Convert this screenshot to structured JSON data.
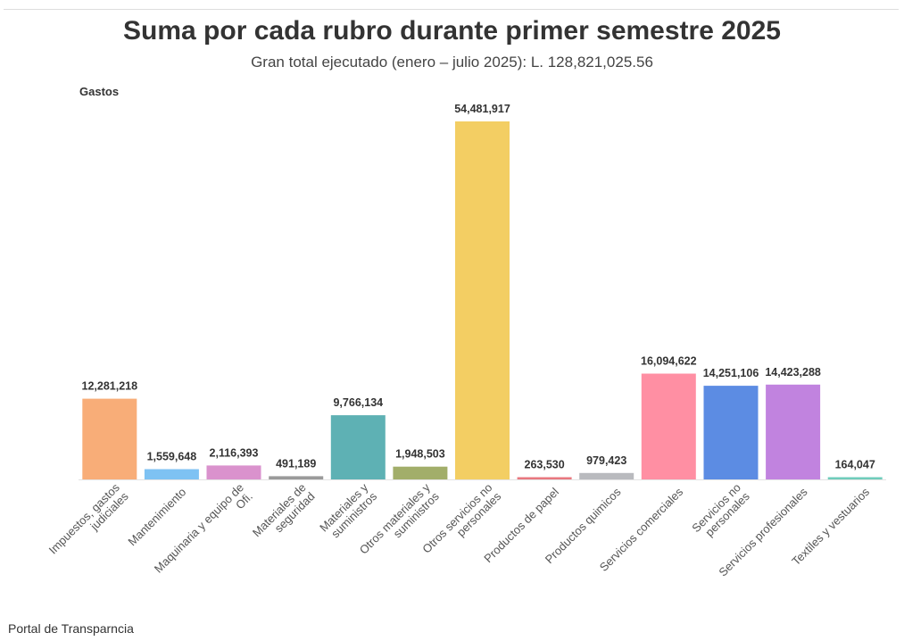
{
  "header": {
    "title": "Suma por cada rubro durante primer semestre 2025",
    "subtitle": "Gran total ejecutado (enero – julio 2025): L. 128,821,025.56"
  },
  "footer": {
    "source": "Portal de Transparncia"
  },
  "chart_data": {
    "type": "bar",
    "title": "Suma por cada rubro durante primer semestre 2025",
    "subtitle": "Gran total ejecutado (enero – julio 2025): L. 128,821,025.56",
    "xlabel": "",
    "ylabel": "Gastos",
    "grid": false,
    "legend": "none",
    "ylim": [
      0,
      54481917
    ],
    "categories": [
      [
        "Impuestos, gastos",
        "judiciales"
      ],
      [
        "Mantenimiento"
      ],
      [
        "Maquinaria y equipo de",
        "Ofi."
      ],
      [
        "Materiales de",
        "seguridad"
      ],
      [
        "Materiales y",
        "suministros"
      ],
      [
        "Otros materiales y",
        "suministros"
      ],
      [
        "Otros servicios no",
        "personales"
      ],
      [
        "Productos de papel"
      ],
      [
        "Productos quimicos"
      ],
      [
        "Servicios comerciales"
      ],
      [
        "Servicios no",
        "personales"
      ],
      [
        "Servicios profesionales"
      ],
      [
        "Textiles y vestuarios"
      ]
    ],
    "values": [
      12281218,
      1559648,
      2116393,
      491189,
      9766134,
      1948503,
      54481917,
      263530,
      979423,
      16094622,
      14251106,
      14423288,
      164047
    ],
    "value_labels": [
      "12,281,218",
      "1,559,648",
      "2,116,393",
      "491,189",
      "9,766,134",
      "1,948,503",
      "54,481,917",
      "263,530",
      "979,423",
      "16,094,622",
      "14,251,106",
      "14,423,288",
      "164,047"
    ],
    "colors": [
      "#F8AD78",
      "#7EC2F3",
      "#DA92CD",
      "#9A9A9A",
      "#5EB1B4",
      "#A2AE6A",
      "#F3CE63",
      "#E8787F",
      "#B9BABE",
      "#FF8FA3",
      "#5C8CE3",
      "#C183DF",
      "#6FCCBB"
    ]
  }
}
